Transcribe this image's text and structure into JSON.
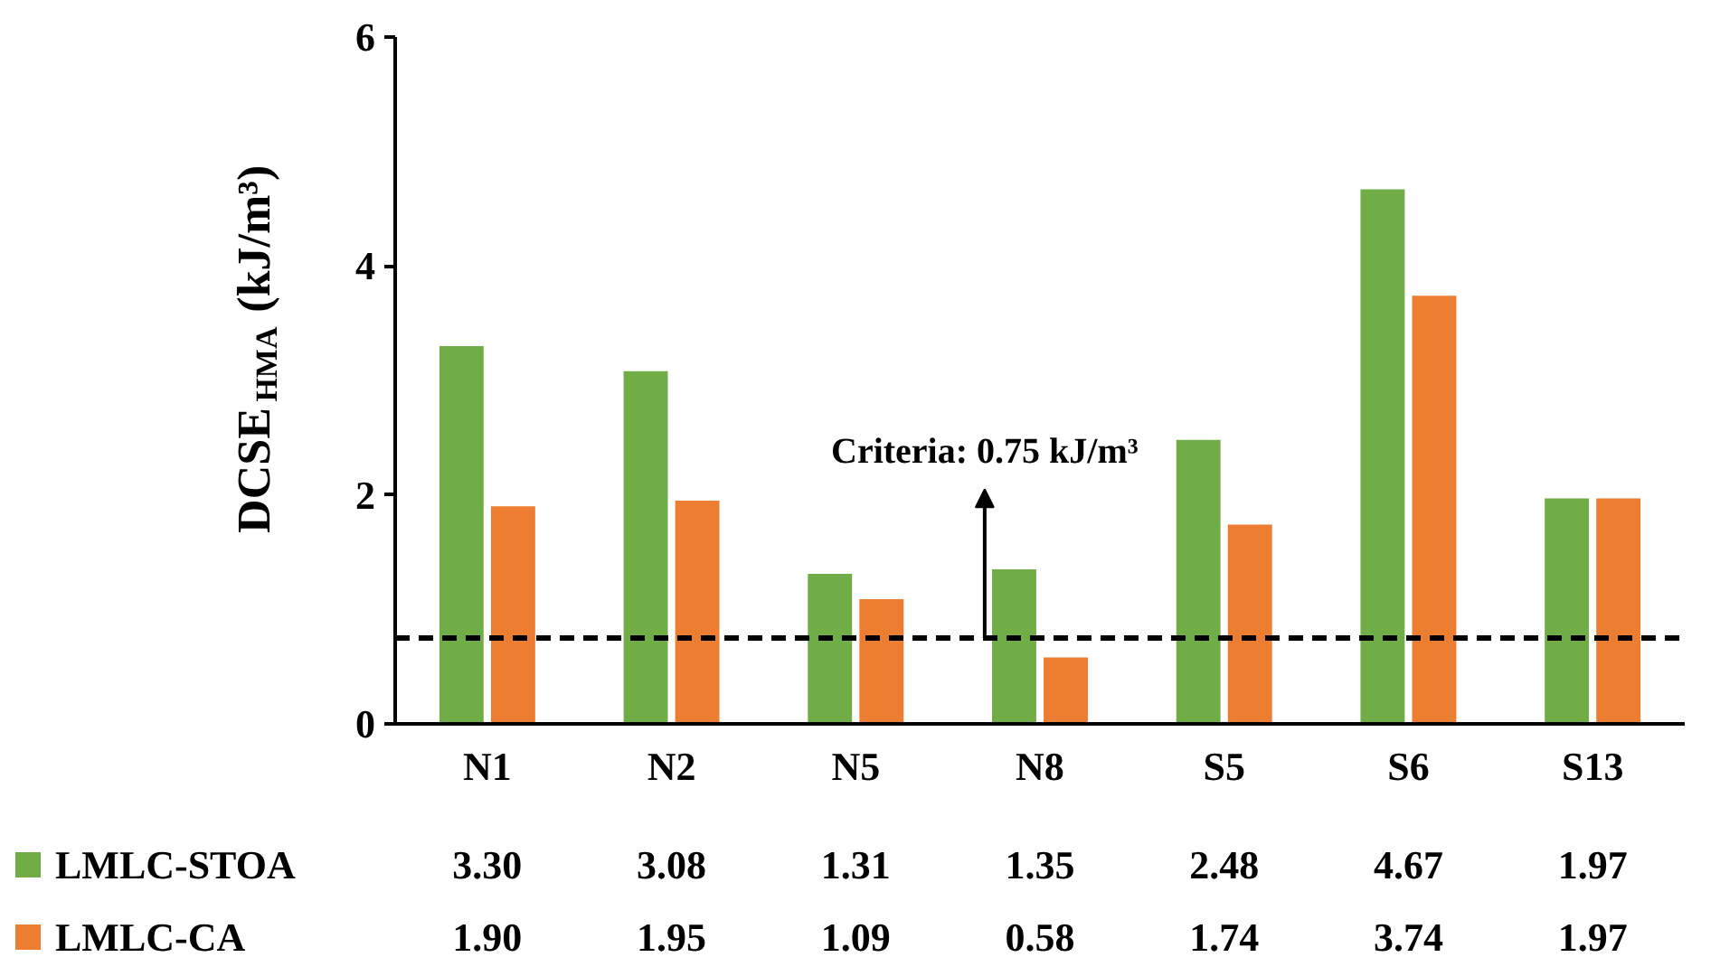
{
  "chart_data": {
    "type": "bar",
    "ylabel": "DCSE$_{HMA}$ (kJ/m³)",
    "categories": [
      "N1",
      "N2",
      "N5",
      "N8",
      "S5",
      "S6",
      "S13"
    ],
    "series": [
      {
        "name": "LMLC-STOA",
        "color": "#70ad47",
        "values": [
          3.3,
          3.08,
          1.31,
          1.35,
          2.48,
          4.67,
          1.97
        ],
        "value_labels": [
          "3.30",
          "3.08",
          "1.31",
          "1.35",
          "2.48",
          "4.67",
          "1.97"
        ]
      },
      {
        "name": "LMLC-CA",
        "color": "#ed7d31",
        "values": [
          1.9,
          1.95,
          1.09,
          0.58,
          1.74,
          3.74,
          1.97
        ],
        "value_labels": [
          "1.90",
          "1.95",
          "1.09",
          "0.58",
          "1.74",
          "3.74",
          "1.97"
        ]
      }
    ],
    "ylim": [
      0,
      6
    ],
    "yticks": [
      0,
      2,
      4,
      6
    ],
    "ref_lines": [
      {
        "axis": "y",
        "value": 0.75,
        "label": "Criteria: 0.75 kJ/m³",
        "line_style": "dashed",
        "color": "#000000"
      }
    ],
    "legend": "bottom",
    "grid": false
  }
}
